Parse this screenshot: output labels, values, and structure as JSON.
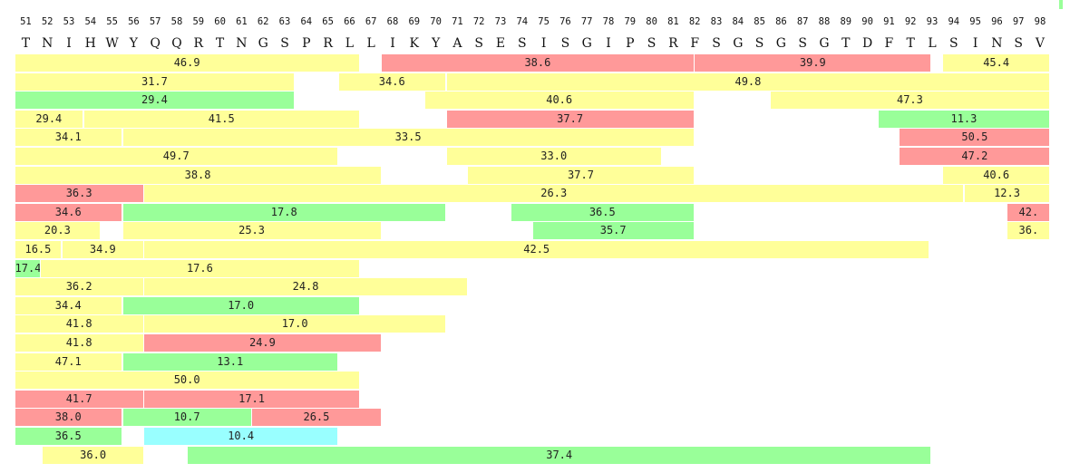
{
  "ruler": {
    "start": 51,
    "positions": [
      "51",
      "52",
      "53",
      "54",
      "55",
      "56",
      "57",
      "58",
      "59",
      "60",
      "61",
      "62",
      "63",
      "64",
      "65",
      "66",
      "67",
      "68",
      "69",
      "70",
      "71",
      "72",
      "73",
      "74",
      "75",
      "76",
      "77",
      "78",
      "79",
      "80",
      "81",
      "82",
      "83",
      "84",
      "85",
      "86",
      "87",
      "88",
      "89",
      "90",
      "91",
      "92",
      "93",
      "94",
      "95",
      "96",
      "97",
      "98"
    ],
    "residues": [
      "T",
      "N",
      "I",
      "H",
      "W",
      "Y",
      "Q",
      "Q",
      "R",
      "T",
      "N",
      "G",
      "S",
      "P",
      "R",
      "L",
      "L",
      "I",
      "K",
      "Y",
      "A",
      "S",
      "E",
      "S",
      "I",
      "S",
      "G",
      "I",
      "P",
      "S",
      "R",
      "F",
      "S",
      "G",
      "S",
      "G",
      "S",
      "G",
      "T",
      "D",
      "F",
      "T",
      "L",
      "S",
      "I",
      "N",
      "S",
      "V"
    ]
  },
  "colors": {
    "yellow": "#ffff99",
    "red": "#ff9999",
    "green": "#99ff99",
    "cyan": "#99ffff",
    "marker": "#99ff99"
  },
  "tracks": [
    [
      {
        "s": 51,
        "e": 67,
        "label": "46.9",
        "c": "yellow"
      },
      {
        "s": 68,
        "e": 82.5,
        "label": "38.6",
        "c": "red"
      },
      {
        "s": 82.5,
        "e": 93.5,
        "label": "39.9",
        "c": "red"
      },
      {
        "s": 94,
        "e": 99,
        "label": "45.4",
        "c": "yellow"
      }
    ],
    [
      {
        "s": 51,
        "e": 64,
        "label": "31.7",
        "c": "yellow"
      },
      {
        "s": 66,
        "e": 71,
        "label": "34.6",
        "c": "yellow"
      },
      {
        "s": 71,
        "e": 99,
        "label": "49.8",
        "c": "yellow"
      }
    ],
    [
      {
        "s": 51,
        "e": 64,
        "label": "29.4",
        "c": "green"
      },
      {
        "s": 70,
        "e": 82.5,
        "label": "40.6",
        "c": "yellow"
      },
      {
        "s": 86,
        "e": 99,
        "label": "47.3",
        "c": "yellow"
      }
    ],
    [
      {
        "s": 51,
        "e": 54.2,
        "label": "29.4",
        "c": "yellow"
      },
      {
        "s": 54.2,
        "e": 67,
        "label": "41.5",
        "c": "yellow"
      },
      {
        "s": 71,
        "e": 82.5,
        "label": "37.7",
        "c": "red"
      },
      {
        "s": 91,
        "e": 99,
        "label": "11.3",
        "c": "green"
      }
    ],
    [
      {
        "s": 51,
        "e": 56,
        "label": "34.1",
        "c": "yellow"
      },
      {
        "s": 56,
        "e": 82.5,
        "label": "33.5",
        "c": "yellow"
      },
      {
        "s": 92,
        "e": 99,
        "label": "50.5",
        "c": "red"
      }
    ],
    [
      {
        "s": 51,
        "e": 66,
        "label": "49.7",
        "c": "yellow"
      },
      {
        "s": 71,
        "e": 81,
        "label": "33.0",
        "c": "yellow"
      },
      {
        "s": 92,
        "e": 99,
        "label": "47.2",
        "c": "red"
      }
    ],
    [
      {
        "s": 51,
        "e": 68,
        "label": "38.8",
        "c": "yellow"
      },
      {
        "s": 72,
        "e": 82.5,
        "label": "37.7",
        "c": "yellow"
      },
      {
        "s": 94,
        "e": 99,
        "label": "40.6",
        "c": "yellow"
      }
    ],
    [
      {
        "s": 51,
        "e": 57,
        "label": "36.3",
        "c": "red"
      },
      {
        "s": 57,
        "e": 95,
        "label": "26.3",
        "c": "yellow"
      },
      {
        "s": 95,
        "e": 99,
        "label": "12.3",
        "c": "yellow"
      }
    ],
    [
      {
        "s": 51,
        "e": 56,
        "label": "34.6",
        "c": "red"
      },
      {
        "s": 56,
        "e": 71,
        "label": "17.8",
        "c": "green"
      },
      {
        "s": 74,
        "e": 82.5,
        "label": "36.5",
        "c": "green"
      },
      {
        "s": 97,
        "e": 99,
        "label": "42.",
        "c": "red"
      }
    ],
    [
      {
        "s": 51,
        "e": 55,
        "label": "20.3",
        "c": "yellow"
      },
      {
        "s": 56,
        "e": 68,
        "label": "25.3",
        "c": "yellow"
      },
      {
        "s": 75,
        "e": 82.5,
        "label": "35.7",
        "c": "green"
      },
      {
        "s": 97,
        "e": 99,
        "label": "36.",
        "c": "yellow"
      }
    ],
    [
      {
        "s": 51,
        "e": 53.2,
        "label": "16.5",
        "c": "yellow"
      },
      {
        "s": 53.2,
        "e": 57,
        "label": "34.9",
        "c": "yellow"
      },
      {
        "s": 57,
        "e": 93.4,
        "label": "42.5",
        "c": "yellow"
      }
    ],
    [
      {
        "s": 51,
        "e": 52.2,
        "label": "17.4",
        "c": "green"
      },
      {
        "s": 52.2,
        "e": 67,
        "label": "17.6",
        "c": "yellow"
      }
    ],
    [
      {
        "s": 51,
        "e": 57,
        "label": "36.2",
        "c": "yellow"
      },
      {
        "s": 57,
        "e": 72,
        "label": "24.8",
        "c": "yellow"
      }
    ],
    [
      {
        "s": 51,
        "e": 56,
        "label": "34.4",
        "c": "yellow"
      },
      {
        "s": 56,
        "e": 67,
        "label": "17.0",
        "c": "green"
      }
    ],
    [
      {
        "s": 51,
        "e": 57,
        "label": "41.8",
        "c": "yellow"
      },
      {
        "s": 57,
        "e": 71,
        "label": "17.0",
        "c": "yellow"
      }
    ],
    [
      {
        "s": 51,
        "e": 57,
        "label": "41.8",
        "c": "yellow"
      },
      {
        "s": 57,
        "e": 68,
        "label": "24.9",
        "c": "red"
      }
    ],
    [
      {
        "s": 51,
        "e": 56,
        "label": "47.1",
        "c": "yellow"
      },
      {
        "s": 56,
        "e": 66,
        "label": "13.1",
        "c": "green"
      }
    ],
    [
      {
        "s": 51,
        "e": 67,
        "label": "50.0",
        "c": "yellow"
      }
    ],
    [
      {
        "s": 51,
        "e": 57,
        "label": "41.7",
        "c": "red"
      },
      {
        "s": 57,
        "e": 67,
        "label": "17.1",
        "c": "red"
      }
    ],
    [
      {
        "s": 51,
        "e": 56,
        "label": "38.0",
        "c": "red"
      },
      {
        "s": 56,
        "e": 62,
        "label": "10.7",
        "c": "green"
      },
      {
        "s": 62,
        "e": 68,
        "label": "26.5",
        "c": "red"
      }
    ],
    [
      {
        "s": 51,
        "e": 56,
        "label": "36.5",
        "c": "green"
      },
      {
        "s": 57,
        "e": 66,
        "label": "10.4",
        "c": "cyan"
      }
    ],
    [
      {
        "s": 52.3,
        "e": 57,
        "label": "36.0",
        "c": "yellow"
      },
      {
        "s": 59,
        "e": 93.5,
        "label": "37.4",
        "c": "green"
      }
    ]
  ]
}
